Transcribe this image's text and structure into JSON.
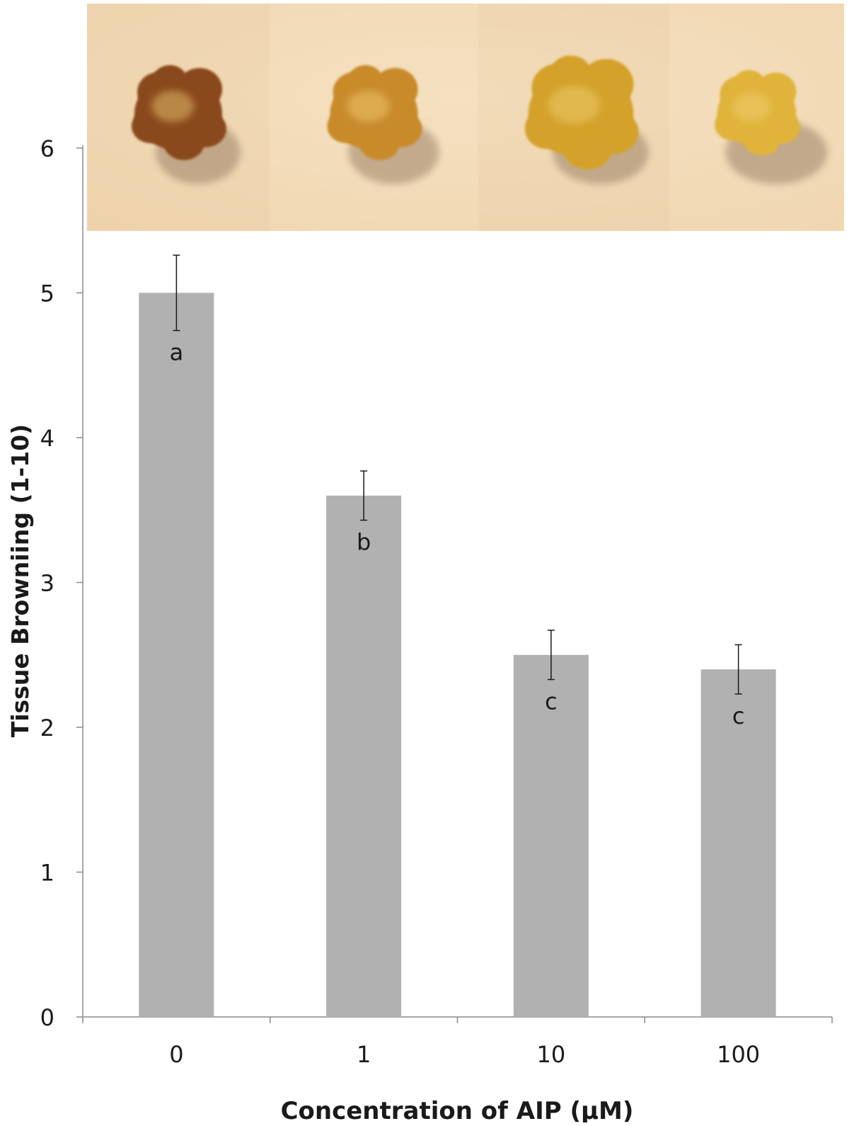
{
  "chart_data": {
    "type": "bar",
    "categories": [
      "0",
      "1",
      "10",
      "100"
    ],
    "values": [
      5.0,
      3.6,
      2.5,
      2.4
    ],
    "error": [
      0.26,
      0.17,
      0.17,
      0.17
    ],
    "significance_letters": [
      "a",
      "b",
      "c",
      "c"
    ],
    "xlabel": "Concentration of AIP (µM)",
    "ylabel": "Tissue Browniing (1-10)",
    "yticks": [
      "0",
      "1",
      "2",
      "3",
      "4",
      "5",
      "6"
    ],
    "ylim": [
      0,
      6
    ],
    "grid": false,
    "bar_color": "#b1b1b1",
    "axis_color": "#8a8a8a",
    "photo_strip": {
      "panels": 4,
      "description_icon": "callus-tissue-photo",
      "tint_colors": [
        "#8a4a1e",
        "#c98a2c",
        "#d4a22a",
        "#e0b43a"
      ],
      "background_color": "#f4dcb8"
    }
  }
}
